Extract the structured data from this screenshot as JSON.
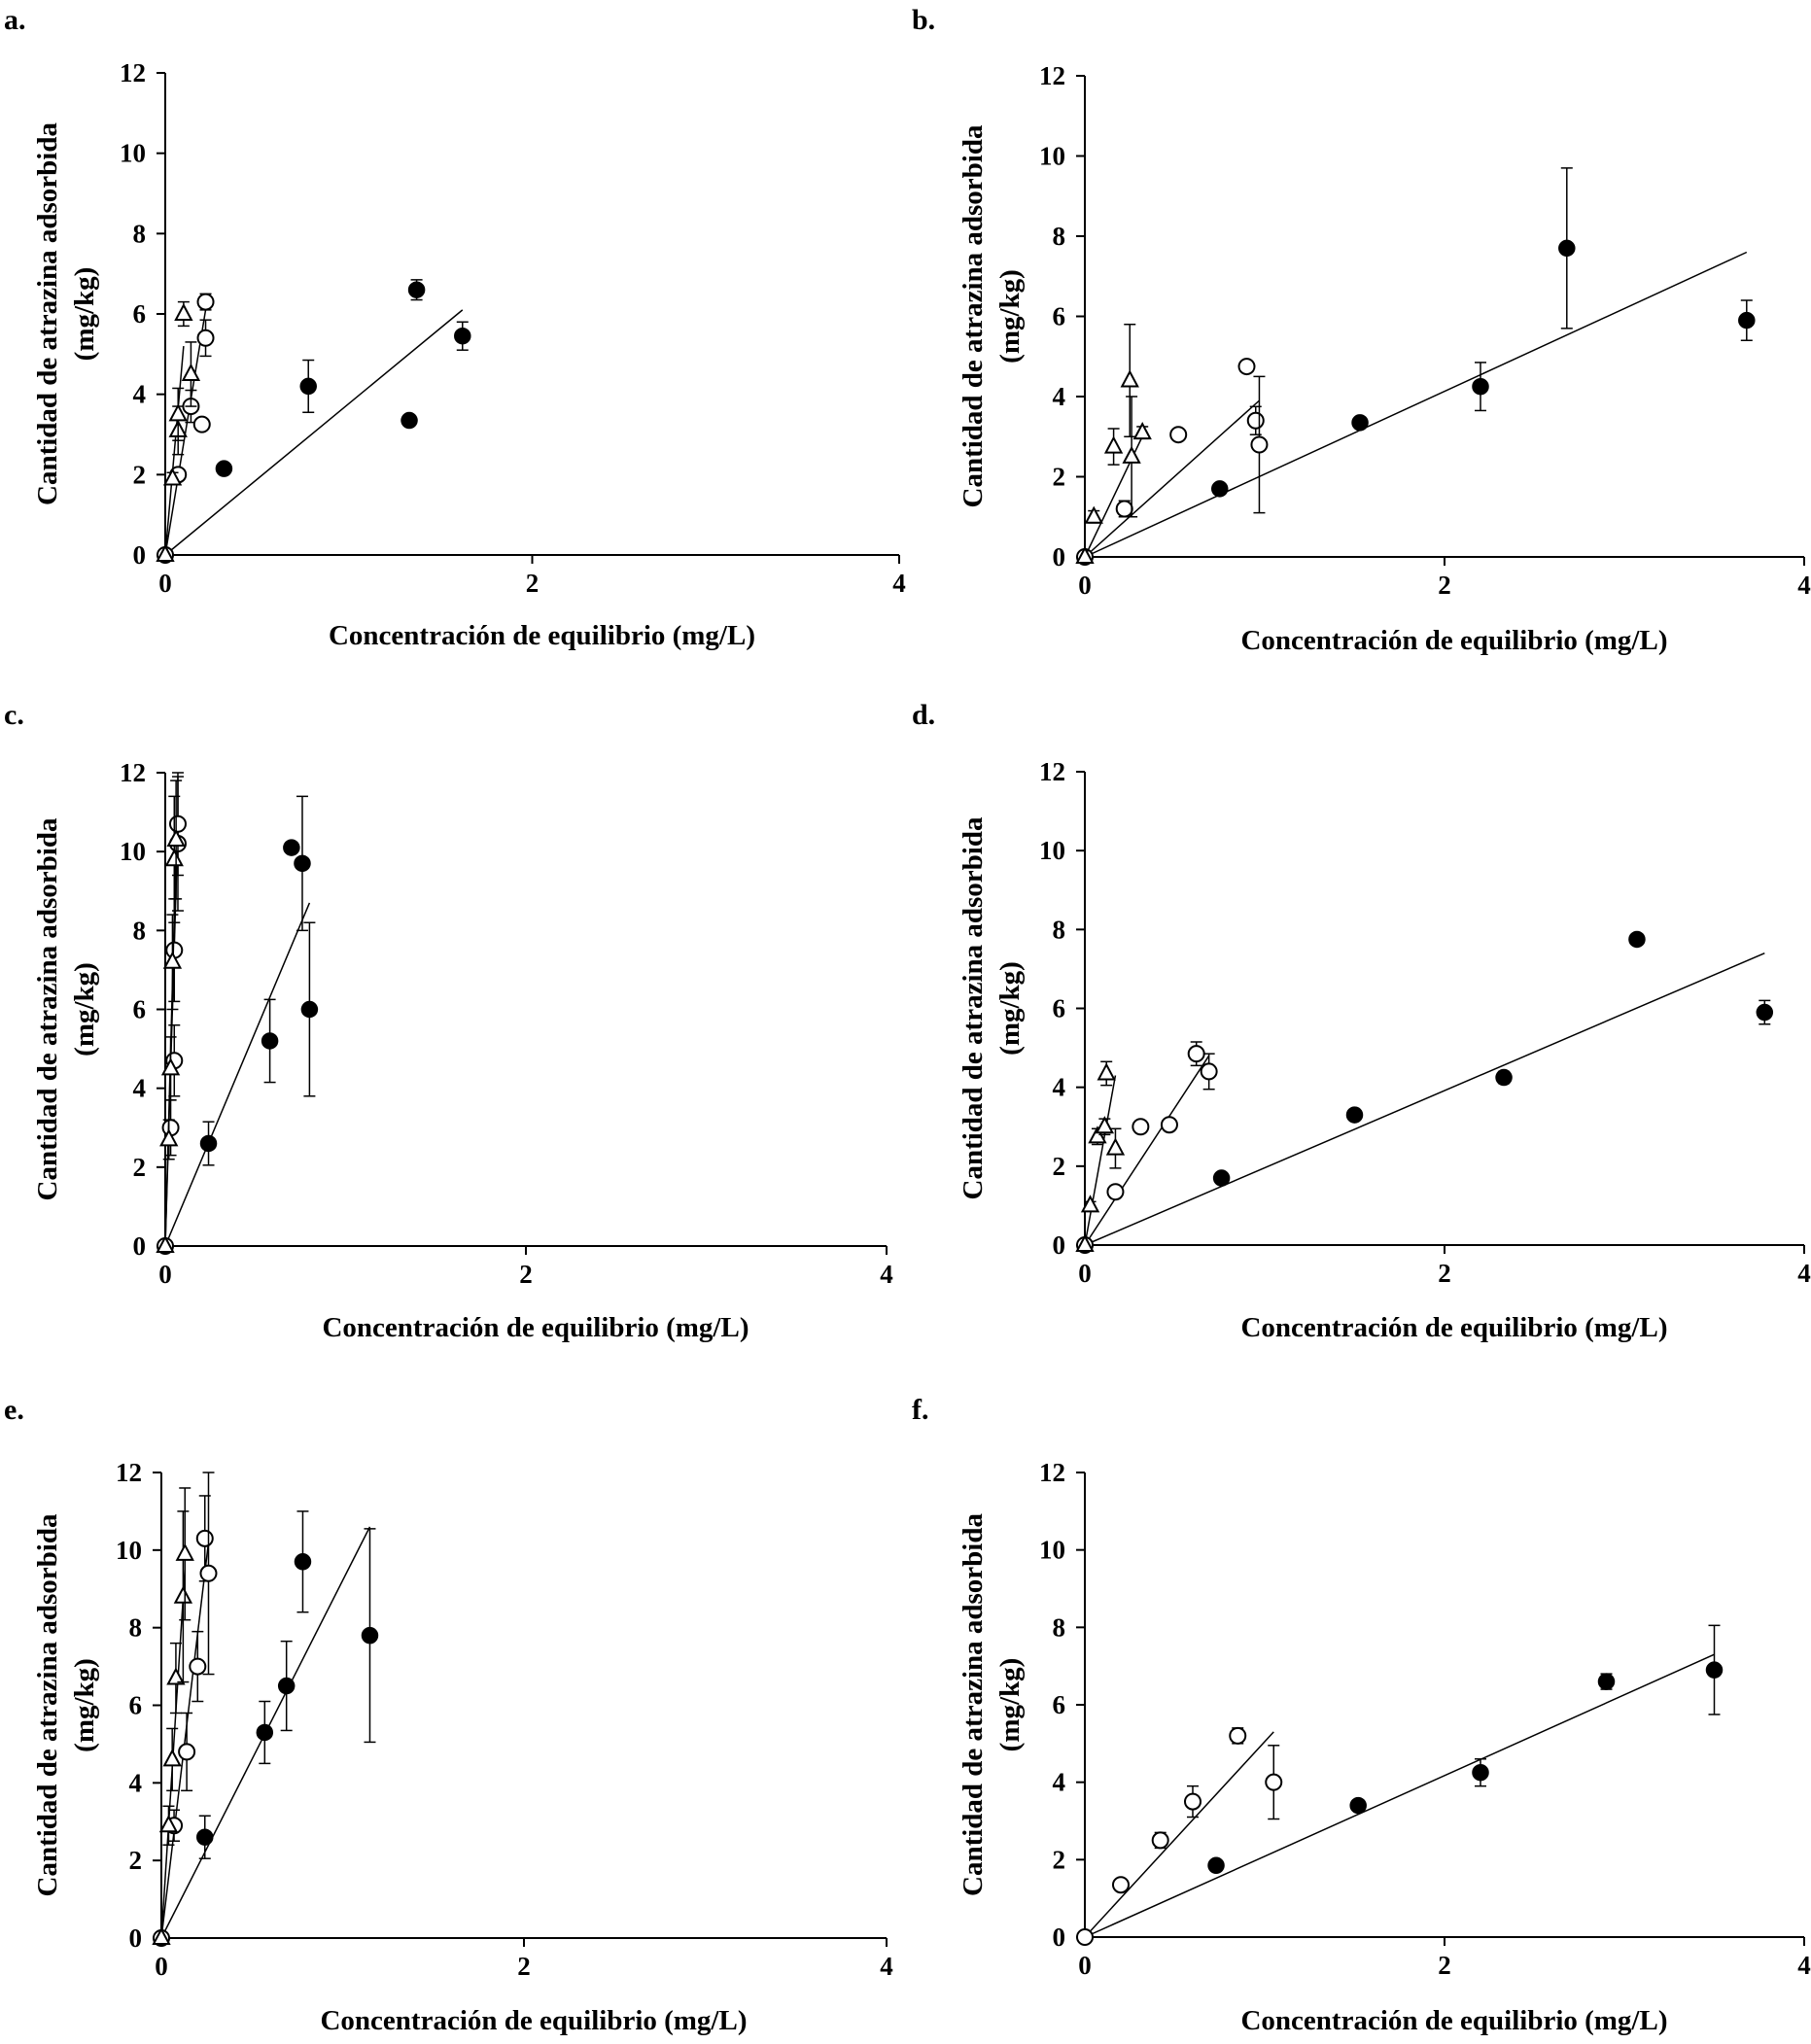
{
  "figure": {
    "panels": [
      "a.",
      "b.",
      "c.",
      "d.",
      "e.",
      "f."
    ]
  },
  "chart_data": [
    {
      "panel": "a.",
      "type": "scatter",
      "xlabel": "Concentración de equilibrio (mg/L)",
      "ylabel": [
        "Cantidad de atrazina adsorbida",
        "(mg/kg)"
      ],
      "xlim": [
        0,
        4
      ],
      "ylim": [
        0,
        12
      ],
      "xticks": [
        0,
        2,
        4
      ],
      "yticks": [
        0,
        2,
        4,
        6,
        8,
        10,
        12
      ],
      "series": [
        {
          "name": "filled-circle",
          "marker": "filled-circle",
          "points": [
            [
              0,
              0
            ],
            [
              0.32,
              2.15
            ],
            [
              0.78,
              4.2
            ],
            [
              1.33,
              3.35
            ],
            [
              1.37,
              6.6
            ],
            [
              1.62,
              5.45
            ]
          ],
          "errors": [
            0,
            0.1,
            0.65,
            0.1,
            0.25,
            0.35
          ],
          "fit": [
            [
              0,
              0
            ],
            [
              1.62,
              6.1
            ]
          ]
        },
        {
          "name": "open-circle",
          "marker": "open-circle",
          "points": [
            [
              0,
              0
            ],
            [
              0.07,
              2.0
            ],
            [
              0.14,
              3.7
            ],
            [
              0.2,
              3.25
            ],
            [
              0.22,
              5.4
            ],
            [
              0.22,
              6.3
            ]
          ],
          "errors": [
            0,
            0,
            0.4,
            0,
            0.45,
            0.2
          ],
          "fit": [
            [
              0,
              0
            ],
            [
              0.22,
              6.1
            ]
          ]
        },
        {
          "name": "open-triangle",
          "marker": "open-triangle",
          "points": [
            [
              0,
              0
            ],
            [
              0.04,
              1.9
            ],
            [
              0.07,
              3.1
            ],
            [
              0.07,
              3.5
            ],
            [
              0.1,
              6.0
            ],
            [
              0.14,
              4.5
            ]
          ],
          "errors": [
            0,
            0.15,
            0.6,
            0.65,
            0.3,
            0.8
          ],
          "fit": [
            [
              0,
              0
            ],
            [
              0.1,
              5.2
            ]
          ]
        }
      ]
    },
    {
      "panel": "b.",
      "type": "scatter",
      "xlabel": "Concentración de equilibrio (mg/L)",
      "ylabel": [
        "Cantidad de atrazina adsorbida",
        "(mg/kg)"
      ],
      "xlim": [
        0,
        4
      ],
      "ylim": [
        0,
        12
      ],
      "xticks": [
        0,
        2,
        4
      ],
      "yticks": [
        0,
        2,
        4,
        6,
        8,
        10,
        12
      ],
      "series": [
        {
          "name": "filled-circle",
          "marker": "filled-circle",
          "points": [
            [
              0,
              0
            ],
            [
              0.75,
              1.7
            ],
            [
              1.53,
              3.35
            ],
            [
              2.2,
              4.25
            ],
            [
              2.68,
              7.7
            ],
            [
              3.68,
              5.9
            ]
          ],
          "errors": [
            0,
            0.1,
            0.1,
            0.6,
            2.0,
            0.5
          ],
          "fit": [
            [
              0,
              0
            ],
            [
              3.68,
              7.6
            ]
          ]
        },
        {
          "name": "open-circle",
          "marker": "open-circle",
          "points": [
            [
              0,
              0
            ],
            [
              0.22,
              1.2
            ],
            [
              0.52,
              3.05
            ],
            [
              0.9,
              4.75
            ],
            [
              0.95,
              3.4
            ],
            [
              0.97,
              2.8
            ]
          ],
          "errors": [
            0,
            0.2,
            0,
            0,
            0.35,
            1.7
          ],
          "fit": [
            [
              0,
              0
            ],
            [
              0.97,
              3.9
            ]
          ]
        },
        {
          "name": "open-triangle",
          "marker": "open-triangle",
          "points": [
            [
              0,
              0
            ],
            [
              0.05,
              1.0
            ],
            [
              0.16,
              2.75
            ],
            [
              0.25,
              4.4
            ],
            [
              0.26,
              2.5
            ],
            [
              0.32,
              3.1
            ]
          ],
          "errors": [
            0,
            0.15,
            0.45,
            1.4,
            1.5,
            0.15
          ],
          "fit": [
            [
              0,
              0
            ],
            [
              0.33,
              3.1
            ]
          ]
        }
      ]
    },
    {
      "panel": "c.",
      "type": "scatter",
      "xlabel": "Concentración de equilibrio (mg/L)",
      "ylabel": [
        "Cantidad de atrazina adsorbida",
        "(mg/kg)"
      ],
      "xlim": [
        0,
        4
      ],
      "ylim": [
        0,
        12
      ],
      "xticks": [
        0,
        2,
        4
      ],
      "yticks": [
        0,
        2,
        4,
        6,
        8,
        10,
        12
      ],
      "series": [
        {
          "name": "filled-circle",
          "marker": "filled-circle",
          "points": [
            [
              0,
              0
            ],
            [
              0.24,
              2.6
            ],
            [
              0.58,
              5.2
            ],
            [
              0.7,
              10.1
            ],
            [
              0.76,
              9.7
            ],
            [
              0.8,
              6.0
            ]
          ],
          "errors": [
            0,
            0.55,
            1.05,
            0,
            1.7,
            2.2
          ],
          "fit": [
            [
              0,
              0
            ],
            [
              0.8,
              8.7
            ]
          ]
        },
        {
          "name": "open-circle",
          "marker": "open-circle",
          "points": [
            [
              0,
              0
            ],
            [
              0.03,
              3.0
            ],
            [
              0.05,
              4.7
            ],
            [
              0.05,
              7.5
            ],
            [
              0.07,
              10.2
            ],
            [
              0.07,
              10.7
            ]
          ],
          "errors": [
            0,
            0.7,
            0.9,
            1.3,
            1.7,
            1.3
          ],
          "fit": [
            [
              0,
              0
            ],
            [
              0.07,
              10.6
            ]
          ]
        },
        {
          "name": "open-triangle",
          "marker": "open-triangle",
          "points": [
            [
              0,
              0
            ],
            [
              0.02,
              2.7
            ],
            [
              0.03,
              4.5
            ],
            [
              0.04,
              7.2
            ],
            [
              0.05,
              9.8
            ],
            [
              0.06,
              10.3
            ]
          ],
          "errors": [
            0,
            0.5,
            0.8,
            1.2,
            1.6,
            1.5
          ],
          "fit": [
            [
              0,
              0
            ],
            [
              0.06,
              10.0
            ]
          ]
        }
      ]
    },
    {
      "panel": "d.",
      "type": "scatter",
      "xlabel": "Concentración de equilibrio (mg/L)",
      "ylabel": [
        "Cantidad de atrazina adsorbida",
        "(mg/kg)"
      ],
      "xlim": [
        0,
        4
      ],
      "ylim": [
        0,
        12
      ],
      "xticks": [
        0,
        2,
        4
      ],
      "yticks": [
        0,
        2,
        4,
        6,
        8,
        10,
        12
      ],
      "series": [
        {
          "name": "filled-circle",
          "marker": "filled-circle",
          "points": [
            [
              0,
              0
            ],
            [
              0.76,
              1.7
            ],
            [
              1.5,
              3.3
            ],
            [
              2.33,
              4.25
            ],
            [
              3.07,
              7.75
            ],
            [
              3.78,
              5.9
            ]
          ],
          "errors": [
            0,
            0,
            0,
            0.15,
            0,
            0.3
          ],
          "fit": [
            [
              0,
              0
            ],
            [
              3.78,
              7.4
            ]
          ]
        },
        {
          "name": "open-circle",
          "marker": "open-circle",
          "points": [
            [
              0,
              0
            ],
            [
              0.17,
              1.35
            ],
            [
              0.31,
              3.0
            ],
            [
              0.47,
              3.05
            ],
            [
              0.62,
              4.85
            ],
            [
              0.69,
              4.4
            ]
          ],
          "errors": [
            0,
            0.15,
            0.15,
            0.15,
            0.3,
            0.45
          ],
          "fit": [
            [
              0,
              0
            ],
            [
              0.69,
              4.8
            ]
          ]
        },
        {
          "name": "open-triangle",
          "marker": "open-triangle",
          "points": [
            [
              0,
              0
            ],
            [
              0.03,
              1.0
            ],
            [
              0.07,
              2.75
            ],
            [
              0.11,
              3.0
            ],
            [
              0.12,
              4.35
            ],
            [
              0.17,
              2.45
            ]
          ],
          "errors": [
            0,
            0.1,
            0.2,
            0.2,
            0.3,
            0.5
          ],
          "fit": [
            [
              0,
              0
            ],
            [
              0.17,
              4.3
            ]
          ]
        }
      ]
    },
    {
      "panel": "e.",
      "type": "scatter",
      "xlabel": "Concentración de equilibrio (mg/L)",
      "ylabel": [
        "Cantidad de atrazina adsorbida",
        "(mg/kg)"
      ],
      "xlim": [
        0,
        4
      ],
      "ylim": [
        0,
        12
      ],
      "xticks": [
        0,
        2,
        4
      ],
      "yticks": [
        0,
        2,
        4,
        6,
        8,
        10,
        12
      ],
      "series": [
        {
          "name": "filled-circle",
          "marker": "filled-circle",
          "points": [
            [
              0,
              0
            ],
            [
              0.24,
              2.6
            ],
            [
              0.57,
              5.3
            ],
            [
              0.69,
              6.5
            ],
            [
              0.78,
              9.7
            ],
            [
              1.15,
              7.8
            ]
          ],
          "errors": [
            0,
            0.55,
            0.8,
            1.15,
            1.3,
            2.75
          ],
          "fit": [
            [
              0,
              0
            ],
            [
              1.15,
              10.6
            ]
          ]
        },
        {
          "name": "open-circle",
          "marker": "open-circle",
          "points": [
            [
              0,
              0
            ],
            [
              0.07,
              2.9
            ],
            [
              0.14,
              4.8
            ],
            [
              0.2,
              7.0
            ],
            [
              0.24,
              10.3
            ],
            [
              0.26,
              9.4
            ]
          ],
          "errors": [
            0,
            0.4,
            1.0,
            0.9,
            1.1,
            2.6
          ],
          "fit": [
            [
              0,
              0
            ],
            [
              0.26,
              10.2
            ]
          ]
        },
        {
          "name": "open-triangle",
          "marker": "open-triangle",
          "points": [
            [
              0,
              0
            ],
            [
              0.04,
              2.9
            ],
            [
              0.06,
              4.6
            ],
            [
              0.08,
              6.7
            ],
            [
              0.12,
              8.8
            ],
            [
              0.13,
              9.9
            ]
          ],
          "errors": [
            0,
            0.5,
            0.8,
            0.9,
            2.2,
            1.7
          ],
          "fit": [
            [
              0,
              0
            ],
            [
              0.13,
              9.5
            ]
          ]
        }
      ]
    },
    {
      "panel": "f.",
      "type": "scatter",
      "xlabel": "Concentración de equilibrio (mg/L)",
      "ylabel": [
        "Cantidad de atrazina adsorbida",
        "(mg/kg)"
      ],
      "xlim": [
        0,
        4
      ],
      "ylim": [
        0,
        12
      ],
      "xticks": [
        0,
        2,
        4
      ],
      "yticks": [
        0,
        2,
        4,
        6,
        8,
        10,
        12
      ],
      "series": [
        {
          "name": "filled-circle",
          "marker": "filled-circle",
          "points": [
            [
              0,
              0
            ],
            [
              0.73,
              1.85
            ],
            [
              1.52,
              3.4
            ],
            [
              2.2,
              4.25
            ],
            [
              2.9,
              6.6
            ],
            [
              3.5,
              6.9
            ]
          ],
          "errors": [
            0,
            0,
            0,
            0.35,
            0.2,
            1.15
          ],
          "fit": [
            [
              0,
              0
            ],
            [
              3.5,
              7.3
            ]
          ]
        },
        {
          "name": "open-circle",
          "marker": "open-circle",
          "points": [
            [
              0,
              0
            ],
            [
              0.2,
              1.35
            ],
            [
              0.42,
              2.5
            ],
            [
              0.6,
              3.5
            ],
            [
              0.85,
              5.2
            ],
            [
              1.05,
              4.0
            ]
          ],
          "errors": [
            0,
            0.15,
            0.2,
            0.4,
            0.2,
            0.95
          ],
          "fit": [
            [
              0,
              0
            ],
            [
              1.05,
              5.3
            ]
          ]
        }
      ]
    }
  ]
}
